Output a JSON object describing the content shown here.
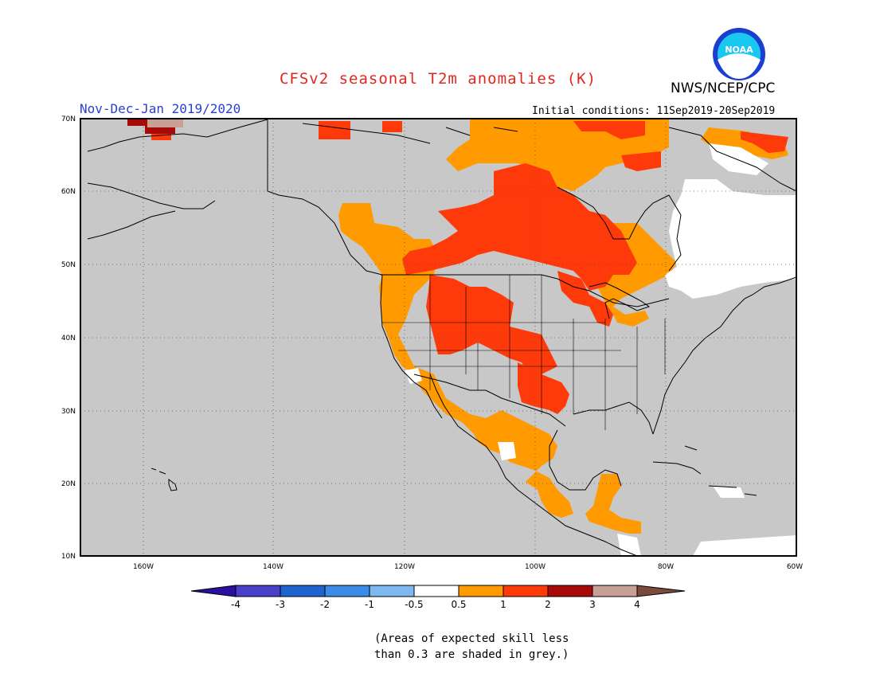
{
  "header": {
    "title": "CFSv2 seasonal T2m anomalies (K)",
    "agency": "NWS/NCEP/CPC",
    "period": "Nov-Dec-Jan 2019/2020",
    "initial_conditions": "Initial conditions: 11Sep2019-20Sep2019",
    "logo_text": "NOAA"
  },
  "map": {
    "lat_labels": [
      "70N",
      "60N",
      "50N",
      "40N",
      "30N",
      "20N",
      "10N"
    ],
    "lon_labels": [
      "160W",
      "140W",
      "120W",
      "100W",
      "80W",
      "60W"
    ],
    "colors": {
      "land_masked": "#c8c8c8",
      "ocean": "#c8c8c8",
      "coast": "#000000"
    }
  },
  "colorbar": {
    "labels": [
      "-4",
      "-3",
      "-2",
      "-1",
      "-0.5",
      "0.5",
      "1",
      "2",
      "3",
      "4"
    ],
    "colors": [
      "#2b0f9e",
      "#4a40c8",
      "#1f63cf",
      "#3a8ce6",
      "#7db8f0",
      "#ffffff",
      "#ff9a00",
      "#ff3a0a",
      "#a80a0a",
      "#c9a095",
      "#7a4a3c"
    ]
  },
  "note": {
    "line1": "(Areas of expected skill less",
    "line2": "than 0.3 are shaded in grey.)"
  }
}
